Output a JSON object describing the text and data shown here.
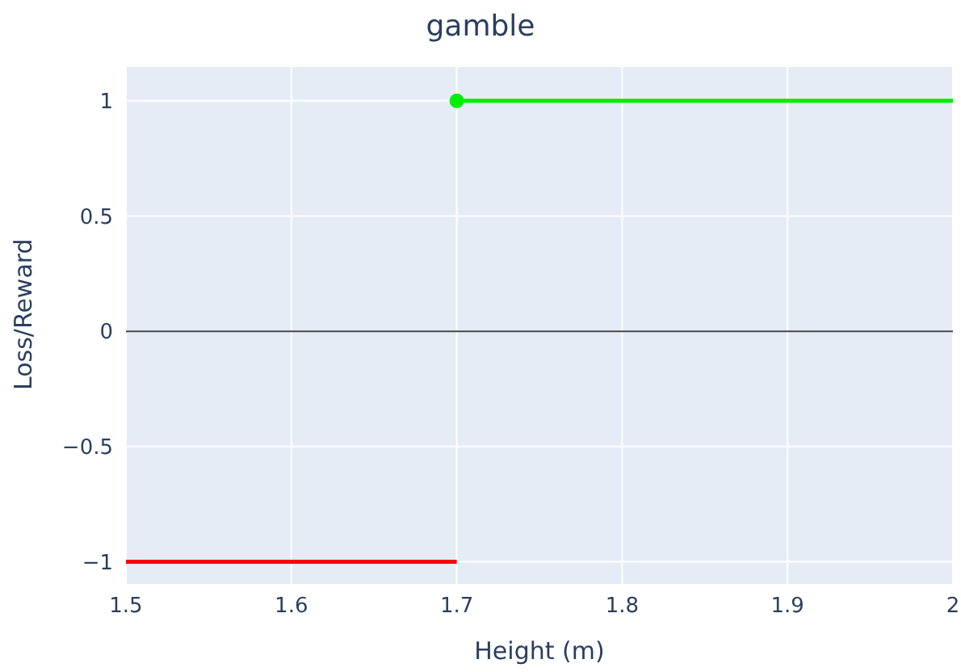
{
  "chart_data": {
    "type": "line",
    "title": "gamble",
    "xlabel": "Height (m)",
    "ylabel": "Loss/Reward",
    "xlim": [
      1.5,
      2
    ],
    "xticks": [
      1.5,
      1.6,
      1.7,
      1.8,
      1.9,
      2
    ],
    "ylim": [
      -1.1,
      1.15
    ],
    "yticks": [
      {
        "value": -1,
        "label": "−1"
      },
      {
        "value": -0.5,
        "label": "−0.5"
      },
      0,
      0.5,
      1
    ],
    "grid": true,
    "line_style": "solid",
    "ref_lines": [
      {
        "axis": "y",
        "value": 0,
        "color": "#444444"
      }
    ],
    "series": [
      {
        "color": "#ff0000",
        "x": [
          1.5,
          1.7
        ],
        "values": [
          -1,
          -1
        ]
      },
      {
        "color": "#00ee00",
        "x": [
          1.7,
          2
        ],
        "values": [
          1,
          1
        ]
      },
      {
        "type": "scatter",
        "color": "#00ee00",
        "x": [
          1.7
        ],
        "values": [
          1
        ]
      }
    ]
  }
}
